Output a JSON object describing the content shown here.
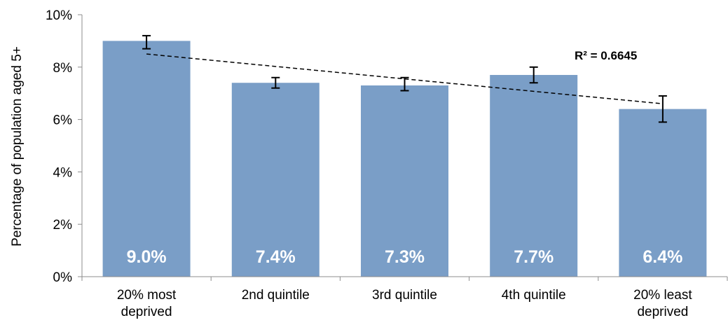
{
  "chart_data": {
    "type": "bar",
    "title": "",
    "xlabel": "",
    "ylabel": "Percentage of population aged 5+",
    "categories": [
      [
        "20% most",
        "deprived"
      ],
      [
        "2nd quintile"
      ],
      [
        "3rd quintile"
      ],
      [
        "4th quintile"
      ],
      [
        "20% least",
        "deprived"
      ]
    ],
    "values": [
      9.0,
      7.4,
      7.3,
      7.7,
      6.4
    ],
    "data_labels": [
      "9.0%",
      "7.4%",
      "7.3%",
      "7.7%",
      "6.4%"
    ],
    "error_bars": [
      {
        "low": 8.7,
        "high": 9.2
      },
      {
        "low": 7.2,
        "high": 7.6
      },
      {
        "low": 7.1,
        "high": 7.6
      },
      {
        "low": 7.4,
        "high": 8.0
      },
      {
        "low": 5.9,
        "high": 6.9
      }
    ],
    "trendline": {
      "type": "linear",
      "start": 8.5,
      "end": 6.6,
      "r2_label": "R² = 0.6645",
      "style": "dashed"
    },
    "ylim": [
      0,
      10
    ],
    "yticks": [
      0,
      2,
      4,
      6,
      8,
      10
    ],
    "ytick_labels": [
      "0%",
      "2%",
      "4%",
      "6%",
      "8%",
      "10%"
    ],
    "grid": false,
    "legend": "none",
    "bar_color": "#7A9EC7",
    "axis_color": "#8c8c8c"
  }
}
